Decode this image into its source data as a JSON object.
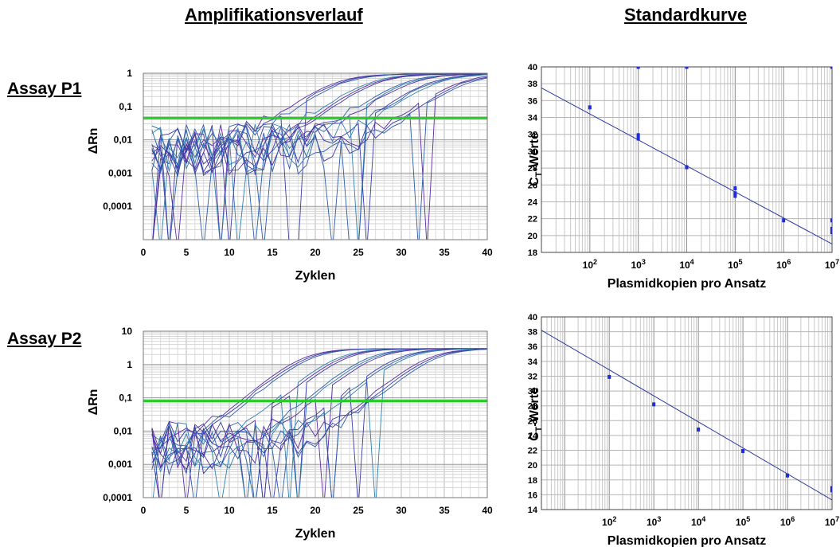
{
  "headings": {
    "left": "Amplifikationsverlauf",
    "right": "Standardkurve"
  },
  "assays": [
    {
      "label": "Assay P1"
    },
    {
      "label": "Assay P2"
    }
  ],
  "chart_data": [
    {
      "type": "line",
      "title": "Amplifikationsverlauf",
      "assay": "Assay P1",
      "xlabel": "Zyklen",
      "ylabel": "ΔRn",
      "xlim": [
        0,
        40
      ],
      "ylim": [
        1e-05,
        1
      ],
      "yscale": "log",
      "x_ticks": [
        "0",
        "5",
        "10",
        "15",
        "20",
        "25",
        "30",
        "35",
        "40"
      ],
      "y_ticks": [
        "1",
        "0,1",
        "0,01",
        "0,001",
        "0,0001"
      ],
      "threshold": 0.045,
      "threshold_color": "#22cc22",
      "curve_color": "#3a3aa8",
      "grid": true,
      "noise_floor": 0.005,
      "plateau": 0.95,
      "curve_midpoints": [
        22,
        22.5,
        23,
        26,
        26.5,
        27,
        30,
        30.5,
        31,
        33,
        33.5,
        34,
        36.5,
        37,
        37.5
      ],
      "curve_slope": 0.45
    },
    {
      "type": "scatter",
      "title": "Standardkurve",
      "assay": "Assay P1",
      "xlabel": "Plasmidkopien pro Ansatz",
      "ylabel": "C_T-Werte",
      "xscale": "log",
      "xlim": [
        10,
        10000000
      ],
      "ylim": [
        18,
        40
      ],
      "x_tick_exponents": [
        2,
        3,
        4,
        5,
        6,
        7
      ],
      "y_ticks": [
        18,
        20,
        22,
        24,
        26,
        28,
        30,
        32,
        34,
        36,
        38,
        40
      ],
      "points": [
        [
          100,
          35.2
        ],
        [
          1000,
          40
        ],
        [
          1000,
          31.9
        ],
        [
          1000,
          31.5
        ],
        [
          10000,
          40
        ],
        [
          10000,
          28.1
        ],
        [
          100000,
          25.6
        ],
        [
          100000,
          25.0
        ],
        [
          100000,
          24.7
        ],
        [
          1000000,
          21.8
        ],
        [
          10000000,
          40
        ],
        [
          10000000,
          21.8
        ],
        [
          10000000,
          20.8
        ],
        [
          10000000,
          20.4
        ]
      ],
      "fit": {
        "x": [
          10,
          10000000
        ],
        "y": [
          37.5,
          19
        ]
      },
      "point_color": "#1f2bd6",
      "line_color": "#2b3a9f",
      "grid": true
    },
    {
      "type": "line",
      "title": "Amplifikationsverlauf",
      "assay": "Assay P2",
      "xlabel": "Zyklen",
      "ylabel": "ΔRn",
      "xlim": [
        0,
        40
      ],
      "ylim": [
        0.0001,
        10
      ],
      "yscale": "log",
      "x_ticks": [
        "0",
        "5",
        "10",
        "15",
        "20",
        "25",
        "30",
        "35",
        "40"
      ],
      "y_ticks": [
        "10",
        "1",
        "0,1",
        "0,01",
        "0,001",
        "0,0001"
      ],
      "threshold": 0.08,
      "threshold_color": "#22cc22",
      "curve_color": "#3a3aa8",
      "grid": true,
      "noise_floor": 0.003,
      "plateau": 3,
      "curve_midpoints": [
        18.5,
        19,
        19.5,
        22.5,
        23,
        23.5,
        26,
        26.5,
        27,
        29.5,
        30,
        30.5,
        33,
        33.5,
        34
      ],
      "curve_slope": 0.5
    },
    {
      "type": "scatter",
      "title": "Standardkurve",
      "assay": "Assay P2",
      "xlabel": "Plasmidkopien pro Ansatz",
      "ylabel": "C_T-Werte",
      "xscale": "log",
      "xlim": [
        3,
        10000000
      ],
      "ylim": [
        14,
        40
      ],
      "x_tick_exponents": [
        2,
        3,
        4,
        5,
        6,
        7
      ],
      "y_ticks": [
        14,
        16,
        18,
        20,
        22,
        24,
        26,
        28,
        30,
        32,
        34,
        36,
        38,
        40
      ],
      "points": [
        [
          100,
          31.9
        ],
        [
          1000,
          28.2
        ],
        [
          10000,
          24.8
        ],
        [
          100000,
          21.9
        ],
        [
          1000000,
          18.6
        ],
        [
          10000000,
          16.9
        ],
        [
          10000000,
          16.6
        ]
      ],
      "fit": {
        "x": [
          3,
          10000000
        ],
        "y": [
          38.2,
          15.3
        ]
      },
      "point_color": "#1f2bd6",
      "line_color": "#2b3a9f",
      "grid": true
    }
  ]
}
